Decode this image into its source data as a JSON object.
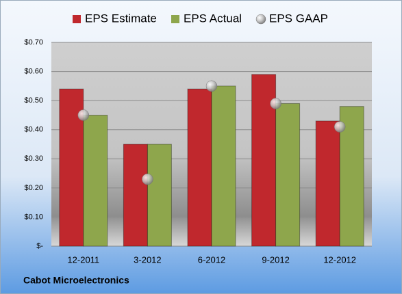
{
  "chart_data": {
    "type": "bar",
    "subtitle": "Cabot Microelectronics",
    "categories": [
      "12-2011",
      "3-2012",
      "6-2012",
      "9-2012",
      "12-2012"
    ],
    "series": [
      {
        "name": "EPS Estimate",
        "color": "#c0282d",
        "type": "bar",
        "values": [
          0.54,
          0.35,
          0.54,
          0.59,
          0.43
        ]
      },
      {
        "name": "EPS Actual",
        "color": "#8ea64c",
        "type": "bar",
        "values": [
          0.45,
          0.35,
          0.55,
          0.49,
          0.48
        ]
      },
      {
        "name": "EPS GAAP",
        "color": "#b8b8b8",
        "type": "scatter",
        "values": [
          0.45,
          0.23,
          0.55,
          0.49,
          0.41
        ]
      }
    ],
    "ylim": [
      0,
      0.7
    ],
    "yticks": [
      {
        "value": 0,
        "label": "$-"
      },
      {
        "value": 0.1,
        "label": "$0.10"
      },
      {
        "value": 0.2,
        "label": "$0.20"
      },
      {
        "value": 0.3,
        "label": "$0.30"
      },
      {
        "value": 0.4,
        "label": "$0.40"
      },
      {
        "value": 0.5,
        "label": "$0.50"
      },
      {
        "value": 0.6,
        "label": "$0.60"
      },
      {
        "value": 0.7,
        "label": "$0.70"
      }
    ],
    "grid": true,
    "legend": "top"
  }
}
